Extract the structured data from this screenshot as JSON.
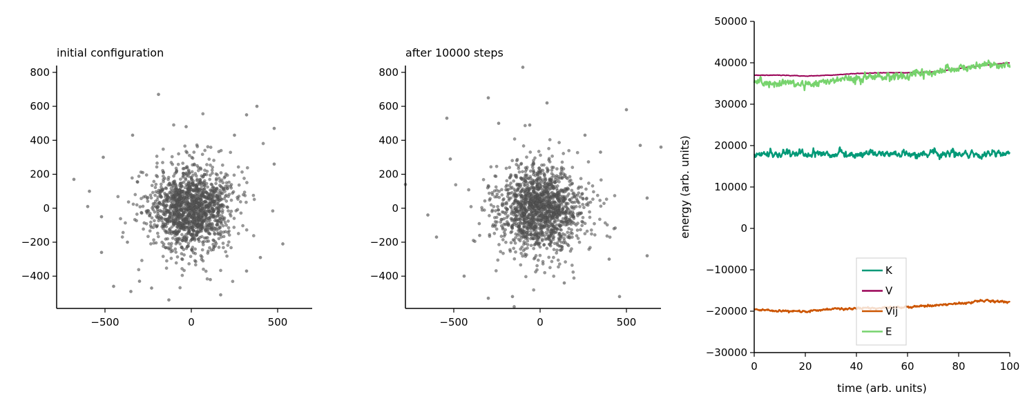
{
  "chart_data": [
    {
      "type": "scatter",
      "title": "initial configuration",
      "xlabel": "",
      "ylabel": "",
      "xlim": [
        -780,
        700
      ],
      "ylim": [
        -590,
        840
      ],
      "xticks": [
        -500,
        0,
        500
      ],
      "yticks": [
        -400,
        -200,
        0,
        200,
        400,
        600,
        800
      ],
      "point_color": "#555555",
      "point_count": 1500,
      "center": [
        0,
        0
      ],
      "spread": 150,
      "outliers": [
        [
          -680,
          170
        ],
        [
          -600,
          10
        ],
        [
          -590,
          100
        ],
        [
          -520,
          -50
        ],
        [
          -510,
          300
        ],
        [
          -450,
          -460
        ],
        [
          -350,
          -490
        ],
        [
          -340,
          430
        ],
        [
          -370,
          -200
        ],
        [
          -190,
          670
        ],
        [
          -130,
          -540
        ],
        [
          -230,
          -470
        ],
        [
          170,
          -510
        ],
        [
          320,
          550
        ],
        [
          380,
          600
        ],
        [
          480,
          470
        ],
        [
          530,
          -210
        ],
        [
          480,
          260
        ],
        [
          400,
          -290
        ],
        [
          250,
          430
        ],
        [
          110,
          -420
        ],
        [
          -30,
          480
        ],
        [
          -300,
          -430
        ],
        [
          320,
          -370
        ],
        [
          -520,
          -260
        ]
      ]
    },
    {
      "type": "scatter",
      "title": "after 10000 steps",
      "xlabel": "",
      "ylabel": "",
      "xlim": [
        -780,
        700
      ],
      "ylim": [
        -590,
        840
      ],
      "xticks": [
        -500,
        0,
        500
      ],
      "yticks": [
        -400,
        -200,
        0,
        200,
        400,
        600,
        800
      ],
      "point_color": "#555555",
      "point_count": 1500,
      "center": [
        0,
        0
      ],
      "spread": 160,
      "outliers": [
        [
          -100,
          830
        ],
        [
          -780,
          140
        ],
        [
          -540,
          530
        ],
        [
          -650,
          -40
        ],
        [
          -600,
          -170
        ],
        [
          -300,
          650
        ],
        [
          -300,
          -530
        ],
        [
          -150,
          -580
        ],
        [
          -240,
          500
        ],
        [
          40,
          620
        ],
        [
          500,
          580
        ],
        [
          700,
          360
        ],
        [
          580,
          370
        ],
        [
          620,
          60
        ],
        [
          620,
          -280
        ],
        [
          460,
          -520
        ],
        [
          -440,
          -400
        ],
        [
          140,
          -440
        ],
        [
          -160,
          -520
        ],
        [
          400,
          -300
        ],
        [
          -520,
          290
        ],
        [
          260,
          430
        ],
        [
          -60,
          490
        ],
        [
          350,
          330
        ],
        [
          -350,
          -160
        ]
      ]
    },
    {
      "type": "line",
      "title": "",
      "xlabel": "time (arb. units)",
      "ylabel": "energy (arb. units)",
      "xlim": [
        0,
        100
      ],
      "ylim": [
        -30000,
        50000
      ],
      "xticks": [
        0,
        20,
        40,
        60,
        80,
        100
      ],
      "yticks": [
        -30000,
        -20000,
        -10000,
        0,
        10000,
        20000,
        30000,
        40000,
        50000
      ],
      "legend_position": "lower-center",
      "series": [
        {
          "name": "K",
          "color": "#009977",
          "x": [
            0,
            10,
            20,
            30,
            40,
            50,
            60,
            70,
            80,
            90,
            100
          ],
          "y": [
            18000,
            18000,
            18000,
            18000,
            18000,
            18000,
            18000,
            18000,
            18000,
            18000,
            18000
          ],
          "noise": 800
        },
        {
          "name": "V",
          "color": "#990055",
          "x": [
            0,
            10,
            20,
            30,
            40,
            50,
            60,
            70,
            80,
            90,
            100
          ],
          "y": [
            37000,
            37000,
            36800,
            37000,
            37400,
            37600,
            37600,
            37800,
            38600,
            39400,
            40000
          ],
          "noise": 60
        },
        {
          "name": "Vij",
          "color": "#cc5500",
          "x": [
            0,
            10,
            20,
            30,
            40,
            50,
            60,
            70,
            80,
            90,
            100
          ],
          "y": [
            -19500,
            -20000,
            -20000,
            -19500,
            -19300,
            -19200,
            -19000,
            -18600,
            -18200,
            -17500,
            -17800
          ],
          "noise": 250
        },
        {
          "name": "E",
          "color": "#77d36d",
          "x": [
            0,
            10,
            20,
            30,
            40,
            50,
            60,
            70,
            80,
            90,
            100
          ],
          "y": [
            35500,
            35200,
            35000,
            35600,
            36200,
            36600,
            37000,
            37800,
            38500,
            39600,
            39500
          ],
          "noise": 900
        }
      ]
    }
  ]
}
